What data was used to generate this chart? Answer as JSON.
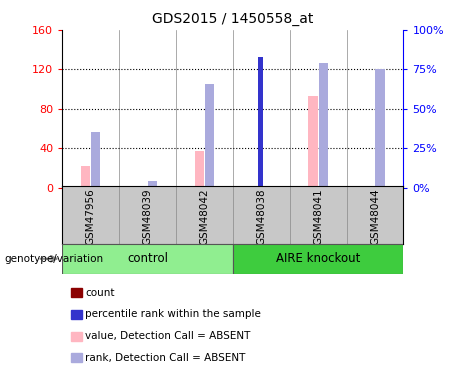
{
  "title": "GDS2015 / 1450558_at",
  "samples": [
    "GSM47956",
    "GSM48039",
    "GSM48042",
    "GSM48038",
    "GSM48041",
    "GSM48044"
  ],
  "groups": [
    "control",
    "control",
    "control",
    "AIRE knockout",
    "AIRE knockout",
    "AIRE knockout"
  ],
  "value_absent": [
    22,
    0,
    37,
    0,
    93,
    0
  ],
  "rank_absent": [
    35,
    4,
    66,
    0,
    79,
    75
  ],
  "count": [
    0,
    0,
    0,
    121,
    0,
    0
  ],
  "percentile_rank": [
    0,
    0,
    0,
    83,
    0,
    0
  ],
  "ylim_left": [
    0,
    160
  ],
  "ylim_right": [
    0,
    100
  ],
  "yticks_left": [
    0,
    40,
    80,
    120,
    160
  ],
  "yticks_right": [
    0,
    25,
    50,
    75,
    100
  ],
  "ytick_labels_left": [
    "0",
    "40",
    "80",
    "120",
    "160"
  ],
  "ytick_labels_right": [
    "0%",
    "25%",
    "50%",
    "75%",
    "100%"
  ],
  "color_count": "#8B0000",
  "color_percentile": "#3333CC",
  "color_value_absent": "#FFB6C1",
  "color_rank_absent": "#AAAADD",
  "group_colors": {
    "control": "#90EE90",
    "AIRE knockout": "#3ECC3E"
  },
  "bar_width": 0.15,
  "legend_items": [
    {
      "label": "count",
      "color": "#8B0000"
    },
    {
      "label": "percentile rank within the sample",
      "color": "#3333CC"
    },
    {
      "label": "value, Detection Call = ABSENT",
      "color": "#FFB6C1"
    },
    {
      "label": "rank, Detection Call = ABSENT",
      "color": "#AAAADD"
    }
  ],
  "genotype_label": "genotype/variation"
}
